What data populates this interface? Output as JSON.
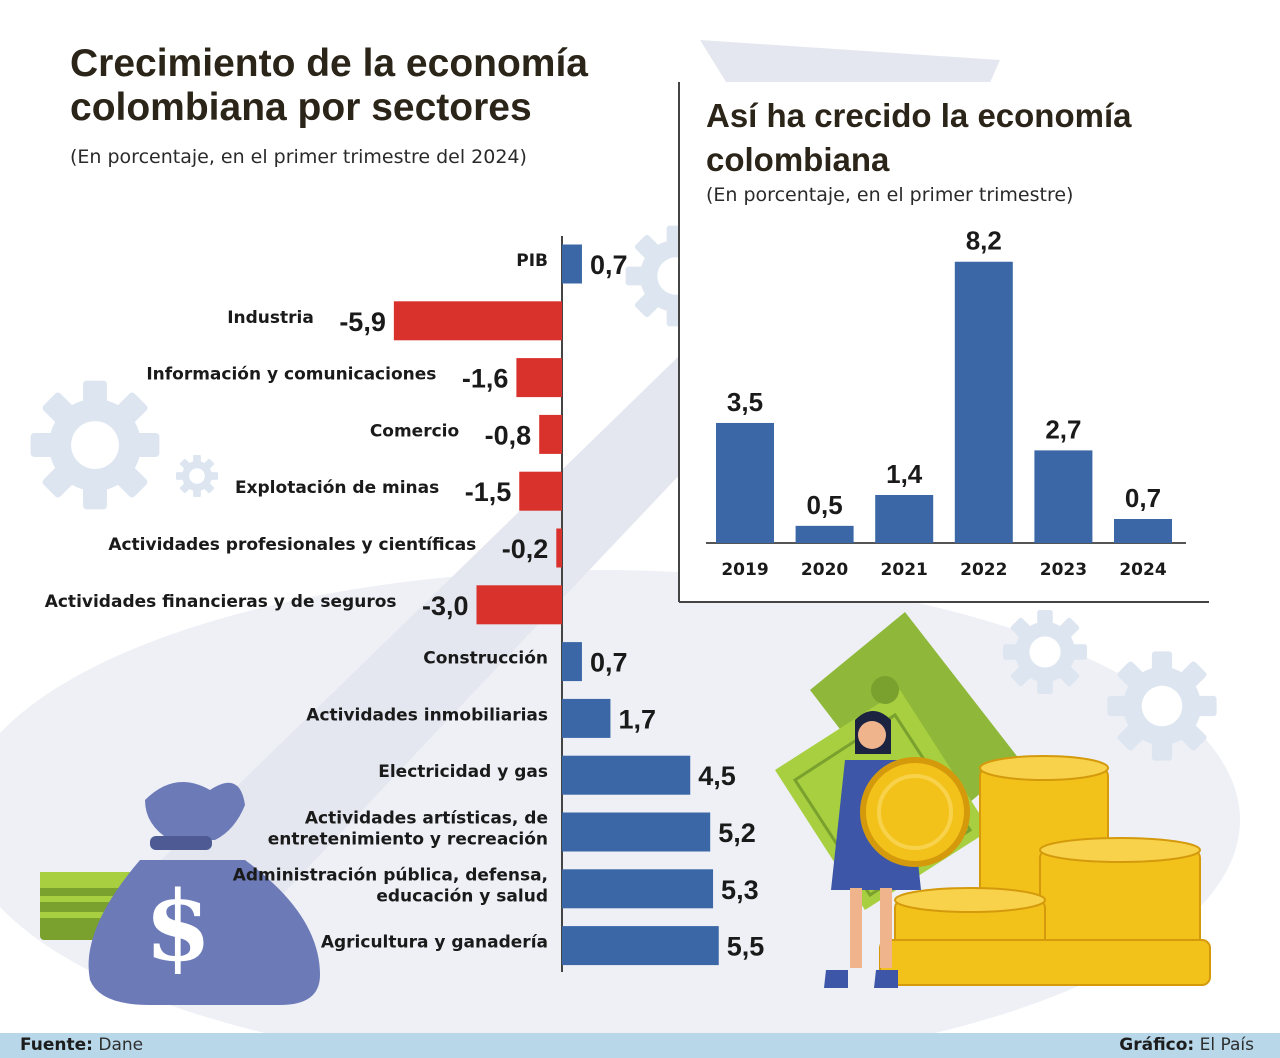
{
  "main_title": "Crecimiento de la economía colombiana por sectores",
  "main_subtitle": "(En porcentaje, en el primer trimestre del 2024)",
  "inset_title": "Así ha crecido la economía colombiana",
  "inset_subtitle": "(En porcentaje, en el primer trimestre)",
  "footer": {
    "source_label": "Fuente:",
    "source_value": "Dane",
    "credit_label": "Gráfico:",
    "credit_value": "El País"
  },
  "colors": {
    "positive": "#3b67a6",
    "negative": "#d9312b",
    "title": "#2b2418"
  },
  "chart_data": [
    {
      "type": "bar",
      "orientation": "horizontal",
      "title": "Crecimiento de la economía colombiana por sectores",
      "subtitle": "(En porcentaje, en el primer trimestre del 2024)",
      "categories": [
        [
          "PIB"
        ],
        [
          "Industria"
        ],
        [
          "Información y comunicaciones"
        ],
        [
          "Comercio"
        ],
        [
          "Explotación de minas"
        ],
        [
          "Actividades profesionales y científicas"
        ],
        [
          "Actividades financieras y de seguros"
        ],
        [
          "Construcción"
        ],
        [
          "Actividades inmobiliarias"
        ],
        [
          "Electricidad y gas"
        ],
        [
          "Actividades artísticas, de",
          "entretenimiento  y recreación"
        ],
        [
          "Administración pública, defensa,",
          "educación y salud"
        ],
        [
          "Agricultura y ganadería"
        ]
      ],
      "values": [
        0.7,
        -5.9,
        -1.6,
        -0.8,
        -1.5,
        -0.2,
        -3.0,
        0.7,
        1.7,
        4.5,
        5.2,
        5.3,
        5.5
      ],
      "value_labels": [
        "0,7",
        "-5,9",
        "-1,6",
        "-0,8",
        "-1,5",
        "-0,2",
        "-3,0",
        "0,7",
        "1,7",
        "4,5",
        "5,2",
        "5,3",
        "5,5"
      ],
      "unit": "%"
    },
    {
      "type": "bar",
      "orientation": "vertical",
      "title": "Así ha crecido la economía colombiana",
      "subtitle": "(En porcentaje, en el primer trimestre)",
      "categories": [
        "2019",
        "2020",
        "2021",
        "2022",
        "2023",
        "2024"
      ],
      "values": [
        3.5,
        0.5,
        1.4,
        8.2,
        2.7,
        0.7
      ],
      "value_labels": [
        "3,5",
        "0,5",
        "1,4",
        "8,2",
        "2,7",
        "0,7"
      ],
      "unit": "%"
    }
  ]
}
